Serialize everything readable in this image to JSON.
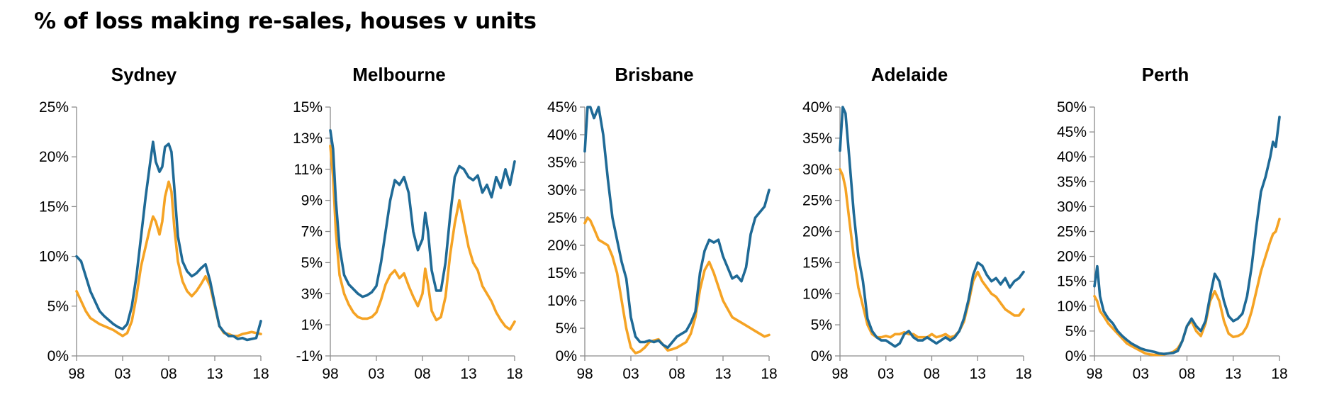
{
  "title": "% of loss making re-sales, houses v units",
  "colors": {
    "houses": "#1f6a96",
    "units": "#f5a324"
  },
  "chart_data": [
    {
      "type": "line",
      "title": "Sydney",
      "xticks": [
        "98",
        "03",
        "08",
        "13",
        "18"
      ],
      "ylim": [
        0,
        25
      ],
      "yticks": [
        "0%",
        "5%",
        "10%",
        "15%",
        "20%",
        "25%"
      ],
      "xlim": [
        1998,
        2018
      ],
      "grid": false,
      "series": [
        {
          "color": "#1f6a96",
          "x": [
            1998,
            1998.5,
            1999,
            1999.5,
            2000,
            2000.5,
            2001,
            2001.5,
            2002,
            2002.5,
            2003,
            2003.5,
            2004,
            2004.5,
            2005,
            2005.5,
            2006,
            2006.3,
            2006.6,
            2007,
            2007.3,
            2007.6,
            2008,
            2008.3,
            2008.6,
            2009,
            2009.5,
            2010,
            2010.5,
            2011,
            2011.5,
            2012,
            2012.5,
            2013,
            2013.5,
            2014,
            2014.5,
            2015,
            2015.5,
            2016,
            2016.5,
            2017,
            2017.5,
            2018
          ],
          "y": [
            10,
            9.5,
            8,
            6.5,
            5.5,
            4.5,
            4,
            3.6,
            3.2,
            2.9,
            2.7,
            3.2,
            5,
            8,
            12,
            16,
            19.5,
            21.5,
            19.5,
            18.5,
            19,
            21,
            21.3,
            20.5,
            17,
            12,
            9.5,
            8.5,
            8,
            8.3,
            8.8,
            9.2,
            7.5,
            5.2,
            3,
            2.4,
            2,
            2,
            1.7,
            1.8,
            1.6,
            1.7,
            1.8,
            3.5
          ]
        },
        {
          "color": "#f5a324",
          "x": [
            1998,
            1998.5,
            1999,
            1999.5,
            2000,
            2000.5,
            2001,
            2001.5,
            2002,
            2002.5,
            2003,
            2003.5,
            2004,
            2004.5,
            2005,
            2005.5,
            2006,
            2006.3,
            2006.6,
            2007,
            2007.3,
            2007.6,
            2008,
            2008.3,
            2008.6,
            2009,
            2009.5,
            2010,
            2010.5,
            2011,
            2011.5,
            2012,
            2012.5,
            2013,
            2013.5,
            2014,
            2014.5,
            2015,
            2015.5,
            2016,
            2016.5,
            2017,
            2017.5,
            2018
          ],
          "y": [
            6.5,
            5.5,
            4.5,
            3.8,
            3.5,
            3.2,
            3,
            2.8,
            2.6,
            2.3,
            2,
            2.3,
            3.5,
            6,
            9,
            11,
            13,
            14,
            13.5,
            12.2,
            13.5,
            16,
            17.5,
            16.5,
            13,
            9.5,
            7.5,
            6.5,
            6,
            6.5,
            7.2,
            8,
            7,
            5,
            3,
            2.3,
            2.2,
            2,
            2,
            2.2,
            2.3,
            2.4,
            2.3,
            2.2
          ]
        }
      ]
    },
    {
      "type": "line",
      "title": "Melbourne",
      "xticks": [
        "98",
        "03",
        "08",
        "13",
        "18"
      ],
      "ylim": [
        -1,
        15
      ],
      "yticks": [
        "-1%",
        "1%",
        "3%",
        "5%",
        "7%",
        "9%",
        "11%",
        "13%",
        "15%"
      ],
      "xlim": [
        1998,
        2018
      ],
      "grid": false,
      "series": [
        {
          "color": "#1f6a96",
          "x": [
            1998,
            1998.3,
            1998.6,
            1999,
            1999.5,
            2000,
            2000.5,
            2001,
            2001.5,
            2002,
            2002.5,
            2003,
            2003.5,
            2004,
            2004.5,
            2005,
            2005.5,
            2006,
            2006.5,
            2007,
            2007.5,
            2008,
            2008.3,
            2008.6,
            2009,
            2009.5,
            2010,
            2010.5,
            2011,
            2011.5,
            2012,
            2012.5,
            2013,
            2013.5,
            2014,
            2014.5,
            2015,
            2015.5,
            2016,
            2016.5,
            2017,
            2017.5,
            2018
          ],
          "y": [
            13.5,
            12.3,
            9,
            6,
            4.2,
            3.6,
            3.3,
            3,
            2.8,
            2.9,
            3.1,
            3.5,
            5,
            7,
            9,
            10.3,
            10,
            10.5,
            9.5,
            7,
            5.8,
            6.5,
            8.2,
            7,
            4.5,
            3.2,
            3.2,
            5,
            8,
            10.5,
            11.2,
            11,
            10.5,
            10.3,
            10.6,
            9.5,
            10,
            9.2,
            10.5,
            9.8,
            11,
            10,
            11.5
          ]
        },
        {
          "color": "#f5a324",
          "x": [
            1998,
            1998.3,
            1998.6,
            1999,
            1999.5,
            2000,
            2000.5,
            2001,
            2001.5,
            2002,
            2002.5,
            2003,
            2003.5,
            2004,
            2004.5,
            2005,
            2005.5,
            2006,
            2006.5,
            2007,
            2007.5,
            2008,
            2008.3,
            2008.6,
            2009,
            2009.5,
            2010,
            2010.5,
            2011,
            2011.5,
            2012,
            2012.5,
            2013,
            2013.5,
            2014,
            2014.5,
            2015,
            2015.5,
            2016,
            2016.5,
            2017,
            2017.5,
            2018
          ],
          "y": [
            12.5,
            10.5,
            7,
            4.2,
            3,
            2.3,
            1.8,
            1.5,
            1.4,
            1.4,
            1.5,
            1.8,
            2.6,
            3.6,
            4.2,
            4.5,
            4,
            4.3,
            3.5,
            2.8,
            2.2,
            3,
            4.6,
            3.6,
            1.9,
            1.3,
            1.5,
            2.8,
            5.5,
            7.5,
            9,
            7.5,
            6,
            5,
            4.5,
            3.5,
            3,
            2.5,
            1.8,
            1.3,
            0.9,
            0.7,
            1.2
          ]
        }
      ]
    },
    {
      "type": "line",
      "title": "Brisbane",
      "xticks": [
        "98",
        "03",
        "08",
        "13",
        "18"
      ],
      "ylim": [
        0,
        45
      ],
      "yticks": [
        "0%",
        "5%",
        "10%",
        "15%",
        "20%",
        "25%",
        "30%",
        "35%",
        "40%",
        "45%"
      ],
      "xlim": [
        1998,
        2018
      ],
      "grid": false,
      "series": [
        {
          "color": "#1f6a96",
          "x": [
            1998,
            1998.3,
            1998.6,
            1999,
            1999.5,
            2000,
            2000.5,
            2001,
            2001.5,
            2002,
            2002.5,
            2003,
            2003.5,
            2004,
            2004.5,
            2005,
            2005.5,
            2006,
            2006.5,
            2007,
            2007.5,
            2008,
            2008.5,
            2009,
            2009.5,
            2010,
            2010.5,
            2011,
            2011.5,
            2012,
            2012.5,
            2013,
            2013.5,
            2014,
            2014.5,
            2015,
            2015.5,
            2016,
            2016.5,
            2017,
            2017.5,
            2018
          ],
          "y": [
            37,
            45,
            45,
            43,
            45,
            40,
            32,
            25,
            21,
            17,
            14,
            7,
            3.5,
            2.5,
            2.5,
            2.8,
            2.5,
            2.8,
            2,
            1.5,
            2.5,
            3.5,
            4,
            4.5,
            6,
            8,
            15,
            19,
            21,
            20.5,
            21,
            18,
            16,
            14,
            14.5,
            13.5,
            16,
            22,
            25,
            26,
            27,
            30
          ]
        },
        {
          "color": "#f5a324",
          "x": [
            1998,
            1998.3,
            1998.6,
            1999,
            1999.5,
            2000,
            2000.5,
            2001,
            2001.5,
            2002,
            2002.5,
            2003,
            2003.5,
            2004,
            2004.5,
            2005,
            2005.5,
            2006,
            2006.5,
            2007,
            2007.5,
            2008,
            2008.5,
            2009,
            2009.5,
            2010,
            2010.5,
            2011,
            2011.5,
            2012,
            2012.5,
            2013,
            2013.5,
            2014,
            2014.5,
            2015,
            2015.5,
            2016,
            2016.5,
            2017,
            2017.5,
            2018
          ],
          "y": [
            24,
            25,
            24.5,
            23,
            21,
            20.5,
            20,
            18,
            15,
            10,
            5,
            1.5,
            0.5,
            0.8,
            1.5,
            2.5,
            2.8,
            3,
            2,
            1,
            1.2,
            1.5,
            2,
            2.5,
            4,
            7,
            12,
            15.5,
            17,
            15,
            12.5,
            10,
            8.5,
            7,
            6.5,
            6,
            5.5,
            5,
            4.5,
            4,
            3.5,
            3.8
          ]
        }
      ]
    },
    {
      "type": "line",
      "title": "Adelaide",
      "xticks": [
        "98",
        "03",
        "08",
        "13",
        "18"
      ],
      "ylim": [
        0,
        40
      ],
      "yticks": [
        "0%",
        "5%",
        "10%",
        "15%",
        "20%",
        "25%",
        "30%",
        "35%",
        "40%"
      ],
      "xlim": [
        1998,
        2018
      ],
      "grid": false,
      "series": [
        {
          "color": "#1f6a96",
          "x": [
            1998,
            1998.3,
            1998.6,
            1999,
            1999.5,
            2000,
            2000.5,
            2001,
            2001.5,
            2002,
            2002.5,
            2003,
            2003.5,
            2004,
            2004.5,
            2005,
            2005.5,
            2006,
            2006.5,
            2007,
            2007.5,
            2008,
            2008.5,
            2009,
            2009.5,
            2010,
            2010.5,
            2011,
            2011.5,
            2012,
            2012.5,
            2013,
            2013.5,
            2014,
            2014.5,
            2015,
            2015.5,
            2016,
            2016.5,
            2017,
            2017.5,
            2018
          ],
          "y": [
            33,
            40,
            39,
            32,
            23,
            16,
            12,
            6,
            4,
            3,
            2.5,
            2.5,
            2,
            1.5,
            2,
            3.5,
            4,
            3,
            2.5,
            2.5,
            3,
            2.5,
            2,
            2.5,
            3,
            2.5,
            3,
            4,
            6,
            9,
            13,
            15,
            14.5,
            13,
            12,
            12.5,
            11.5,
            12.5,
            11,
            12,
            12.5,
            13.5
          ]
        },
        {
          "color": "#f5a324",
          "x": [
            1998,
            1998.3,
            1998.6,
            1999,
            1999.5,
            2000,
            2000.5,
            2001,
            2001.5,
            2002,
            2002.5,
            2003,
            2003.5,
            2004,
            2004.5,
            2005,
            2005.5,
            2006,
            2006.5,
            2007,
            2007.5,
            2008,
            2008.5,
            2009,
            2009.5,
            2010,
            2010.5,
            2011,
            2011.5,
            2012,
            2012.5,
            2013,
            2013.5,
            2014,
            2014.5,
            2015,
            2015.5,
            2016,
            2016.5,
            2017,
            2017.5,
            2018
          ],
          "y": [
            30,
            29,
            27,
            22,
            16,
            11,
            8,
            5,
            3.5,
            3,
            3,
            3.2,
            3,
            3.5,
            3.5,
            3.8,
            3.5,
            3.5,
            3,
            3,
            3,
            3.5,
            3,
            3.2,
            3.5,
            3,
            3.2,
            4,
            5.5,
            8.5,
            12,
            13.5,
            12,
            11,
            10,
            9.5,
            8.5,
            7.5,
            7,
            6.5,
            6.5,
            7.5
          ]
        }
      ]
    },
    {
      "type": "line",
      "title": "Perth",
      "xticks": [
        "98",
        "03",
        "08",
        "13",
        "18"
      ],
      "ylim": [
        0,
        50
      ],
      "yticks": [
        "0%",
        "5%",
        "10%",
        "15%",
        "20%",
        "25%",
        "30%",
        "35%",
        "40%",
        "45%",
        "50%"
      ],
      "xlim": [
        1998,
        2018
      ],
      "grid": false,
      "series": [
        {
          "color": "#1f6a96",
          "x": [
            1998,
            1998.3,
            1998.6,
            1999,
            1999.5,
            2000,
            2000.5,
            2001,
            2001.5,
            2002,
            2002.5,
            2003,
            2003.5,
            2004,
            2004.5,
            2005,
            2005.5,
            2006,
            2006.5,
            2007,
            2007.5,
            2008,
            2008.5,
            2009,
            2009.5,
            2010,
            2010.5,
            2011,
            2011.5,
            2012,
            2012.5,
            2013,
            2013.5,
            2014,
            2014.5,
            2015,
            2015.5,
            2016,
            2016.5,
            2017,
            2017.3,
            2017.6,
            2018
          ],
          "y": [
            14,
            18,
            12,
            9,
            7.5,
            6.5,
            5,
            4,
            3.2,
            2.5,
            2,
            1.5,
            1.2,
            1,
            0.8,
            0.5,
            0.4,
            0.5,
            0.6,
            1,
            3,
            6,
            7.5,
            6,
            5,
            7,
            12,
            16.5,
            15,
            11,
            8,
            7,
            7.5,
            8.5,
            12,
            18,
            26,
            33,
            36,
            40,
            43,
            42,
            48
          ]
        },
        {
          "color": "#f5a324",
          "x": [
            1998,
            1998.3,
            1998.6,
            1999,
            1999.5,
            2000,
            2000.5,
            2001,
            2001.5,
            2002,
            2002.5,
            2003,
            2003.5,
            2004,
            2004.5,
            2005,
            2005.5,
            2006,
            2006.5,
            2007,
            2007.5,
            2008,
            2008.5,
            2009,
            2009.5,
            2010,
            2010.5,
            2011,
            2011.5,
            2012,
            2012.5,
            2013,
            2013.5,
            2014,
            2014.5,
            2015,
            2015.5,
            2016,
            2016.5,
            2017,
            2017.3,
            2017.6,
            2018
          ],
          "y": [
            12,
            11,
            9,
            8,
            6.5,
            5.5,
            4.5,
            3.5,
            2.5,
            2,
            1.5,
            1,
            0.5,
            0.3,
            0.2,
            0.2,
            0.3,
            0.5,
            0.8,
            1.5,
            3,
            6,
            7,
            5,
            4,
            6.5,
            11,
            13,
            11,
            7,
            4.5,
            3.8,
            4,
            4.5,
            6,
            9,
            13,
            17,
            20,
            23,
            24.5,
            25,
            27.5
          ]
        }
      ]
    }
  ]
}
